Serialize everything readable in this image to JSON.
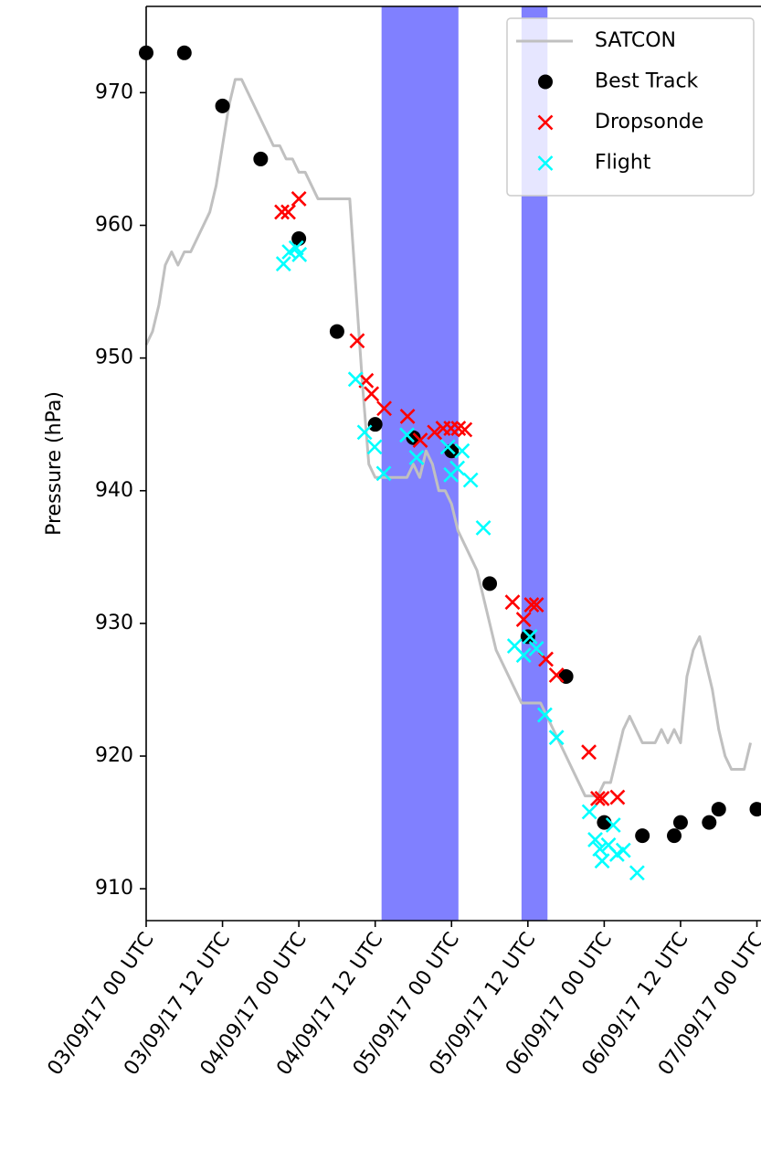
{
  "chart_data": {
    "type": "line",
    "y_label": "Pressure (hPa)",
    "xlim": [
      "2017-09-03T00:00Z",
      "2017-09-07T00:30Z"
    ],
    "ylim": [
      907.6,
      976.5
    ],
    "yticks": [
      910,
      920,
      930,
      940,
      950,
      960,
      970
    ],
    "xticks": [
      {
        "value": "2017-09-03T00:00Z",
        "label": "03/09/17 00 UTC"
      },
      {
        "value": "2017-09-03T12:00Z",
        "label": "03/09/17 12 UTC"
      },
      {
        "value": "2017-09-04T00:00Z",
        "label": "04/09/17 00 UTC"
      },
      {
        "value": "2017-09-04T12:00Z",
        "label": "04/09/17 12 UTC"
      },
      {
        "value": "2017-09-05T00:00Z",
        "label": "05/09/17 00 UTC"
      },
      {
        "value": "2017-09-05T12:00Z",
        "label": "05/09/17 12 UTC"
      },
      {
        "value": "2017-09-06T00:00Z",
        "label": "06/09/17 00 UTC"
      },
      {
        "value": "2017-09-06T12:00Z",
        "label": "06/09/17 12 UTC"
      },
      {
        "value": "2017-09-07T00:00Z",
        "label": "07/09/17 00 UTC"
      }
    ],
    "spans": [
      {
        "x": [
          "2017-09-04T13:00Z",
          "2017-09-05T01:05Z"
        ],
        "color": "#8080ff"
      },
      {
        "x": [
          "2017-09-05T11:00Z",
          "2017-09-05T15:05Z"
        ],
        "color": "#8080ff"
      }
    ],
    "legend": "upper right",
    "series": [
      {
        "name": "SATCON",
        "type": "line",
        "color": "#c0c0c0",
        "x": [
          "2017-09-03T00:00Z",
          "2017-09-03T01:00Z",
          "2017-09-03T02:00Z",
          "2017-09-03T03:00Z",
          "2017-09-03T04:00Z",
          "2017-09-03T05:00Z",
          "2017-09-03T06:00Z",
          "2017-09-03T07:00Z",
          "2017-09-03T08:00Z",
          "2017-09-03T09:00Z",
          "2017-09-03T10:00Z",
          "2017-09-03T11:00Z",
          "2017-09-03T12:00Z",
          "2017-09-03T13:00Z",
          "2017-09-03T14:00Z",
          "2017-09-03T15:00Z",
          "2017-09-03T16:00Z",
          "2017-09-03T17:00Z",
          "2017-09-03T18:00Z",
          "2017-09-03T19:00Z",
          "2017-09-03T20:00Z",
          "2017-09-03T21:00Z",
          "2017-09-03T22:00Z",
          "2017-09-03T23:00Z",
          "2017-09-04T00:00Z",
          "2017-09-04T01:00Z",
          "2017-09-04T02:00Z",
          "2017-09-04T03:00Z",
          "2017-09-04T04:00Z",
          "2017-09-04T05:00Z",
          "2017-09-04T06:00Z",
          "2017-09-04T07:00Z",
          "2017-09-04T08:00Z",
          "2017-09-04T09:00Z",
          "2017-09-04T10:00Z",
          "2017-09-04T11:00Z",
          "2017-09-04T12:00Z",
          "2017-09-04T13:00Z",
          "2017-09-04T14:00Z",
          "2017-09-04T15:00Z",
          "2017-09-04T16:00Z",
          "2017-09-04T17:00Z",
          "2017-09-04T18:00Z",
          "2017-09-04T19:00Z",
          "2017-09-04T20:00Z",
          "2017-09-04T21:00Z",
          "2017-09-04T22:00Z",
          "2017-09-04T23:00Z",
          "2017-09-05T00:00Z",
          "2017-09-05T01:00Z",
          "2017-09-05T02:00Z",
          "2017-09-05T03:00Z",
          "2017-09-05T04:00Z",
          "2017-09-05T05:00Z",
          "2017-09-05T06:00Z",
          "2017-09-05T07:00Z",
          "2017-09-05T08:00Z",
          "2017-09-05T09:00Z",
          "2017-09-05T10:00Z",
          "2017-09-05T11:00Z",
          "2017-09-05T12:00Z",
          "2017-09-05T13:00Z",
          "2017-09-05T14:00Z",
          "2017-09-05T15:00Z",
          "2017-09-05T16:00Z",
          "2017-09-05T17:00Z",
          "2017-09-05T18:00Z",
          "2017-09-05T19:00Z",
          "2017-09-05T20:00Z",
          "2017-09-05T21:00Z",
          "2017-09-05T22:00Z",
          "2017-09-05T23:00Z",
          "2017-09-06T00:00Z",
          "2017-09-06T01:00Z",
          "2017-09-06T02:00Z",
          "2017-09-06T03:00Z",
          "2017-09-06T04:00Z",
          "2017-09-06T05:00Z",
          "2017-09-06T06:00Z",
          "2017-09-06T07:00Z",
          "2017-09-06T08:00Z",
          "2017-09-06T09:00Z",
          "2017-09-06T10:00Z",
          "2017-09-06T11:00Z",
          "2017-09-06T12:00Z",
          "2017-09-06T13:00Z",
          "2017-09-06T14:00Z",
          "2017-09-06T15:00Z",
          "2017-09-06T16:00Z",
          "2017-09-06T17:00Z",
          "2017-09-06T18:00Z",
          "2017-09-06T19:00Z",
          "2017-09-06T20:00Z",
          "2017-09-06T21:00Z",
          "2017-09-06T22:00Z",
          "2017-09-06T23:00Z"
        ],
        "values": [
          951,
          952,
          954,
          957,
          958,
          957,
          958,
          958,
          959,
          960,
          961,
          963,
          966,
          969,
          971,
          971,
          970,
          969,
          968,
          967,
          966,
          966,
          965,
          965,
          964,
          964,
          963,
          962,
          962,
          962,
          962,
          962,
          962,
          955,
          948,
          942,
          941,
          941,
          941,
          941,
          941,
          941,
          942,
          941,
          943,
          942,
          940,
          940,
          939,
          937,
          936,
          935,
          934,
          932,
          930,
          928,
          927,
          926,
          925,
          924,
          924,
          924,
          924,
          923,
          922,
          921,
          920,
          919,
          918,
          917,
          917,
          917,
          918,
          918,
          920,
          922,
          923,
          922,
          921,
          921,
          921,
          922,
          921,
          922,
          921,
          926,
          928,
          929,
          927,
          925,
          922,
          920,
          919,
          919,
          919,
          921
        ]
      },
      {
        "name": "Best Track",
        "type": "scatter",
        "marker": "o",
        "color": "#000000",
        "x": [
          "2017-09-03T00:00Z",
          "2017-09-03T06:00Z",
          "2017-09-03T12:00Z",
          "2017-09-03T18:00Z",
          "2017-09-04T00:00Z",
          "2017-09-04T06:00Z",
          "2017-09-04T12:00Z",
          "2017-09-04T18:00Z",
          "2017-09-05T00:00Z",
          "2017-09-05T06:00Z",
          "2017-09-05T12:00Z",
          "2017-09-05T18:00Z",
          "2017-09-06T00:00Z",
          "2017-09-06T06:00Z",
          "2017-09-06T11:00Z",
          "2017-09-06T12:00Z",
          "2017-09-06T16:30Z",
          "2017-09-06T18:00Z",
          "2017-09-07T00:00Z"
        ],
        "values": [
          973,
          973,
          969,
          965,
          959,
          952,
          945,
          944,
          943,
          933,
          929,
          926,
          915,
          914,
          914,
          915,
          915,
          916,
          916
        ]
      },
      {
        "name": "Dropsonde",
        "type": "scatter",
        "marker": "x",
        "color": "#ff0000",
        "x": [
          "2017-09-03T21:20Z",
          "2017-09-03T22:20Z",
          "2017-09-04T00:00Z",
          "2017-09-04T09:10Z",
          "2017-09-04T10:35Z",
          "2017-09-04T11:25Z",
          "2017-09-04T13:25Z",
          "2017-09-04T17:05Z",
          "2017-09-04T19:05Z",
          "2017-09-04T21:20Z",
          "2017-09-04T22:40Z",
          "2017-09-04T23:55Z",
          "2017-09-05T01:05Z",
          "2017-09-05T02:05Z",
          "2017-09-05T09:35Z",
          "2017-09-05T11:20Z",
          "2017-09-05T12:35Z",
          "2017-09-05T13:20Z",
          "2017-09-05T14:50Z",
          "2017-09-05T16:30Z",
          "2017-09-05T21:35Z",
          "2017-09-05T23:00Z",
          "2017-09-05T23:40Z",
          "2017-09-06T02:05Z"
        ],
        "values": [
          961,
          961,
          962,
          951.3,
          948.3,
          947.3,
          946.2,
          945.6,
          943.8,
          944.4,
          944.7,
          944.7,
          944.7,
          944.6,
          931.6,
          930.3,
          931.4,
          931.4,
          927.3,
          926.1,
          920.3,
          916.8,
          916.8,
          916.9
        ]
      },
      {
        "name": "Flight",
        "type": "scatter",
        "marker": "x",
        "color": "#00ffff",
        "x": [
          "2017-09-03T21:35Z",
          "2017-09-03T22:30Z",
          "2017-09-03T23:35Z",
          "2017-09-04T00:05Z",
          "2017-09-04T08:55Z",
          "2017-09-04T10:20Z",
          "2017-09-04T11:55Z",
          "2017-09-04T13:20Z",
          "2017-09-04T17:00Z",
          "2017-09-04T18:30Z",
          "2017-09-04T23:25Z",
          "2017-09-04T23:55Z",
          "2017-09-05T00:55Z",
          "2017-09-05T01:40Z",
          "2017-09-05T03:00Z",
          "2017-09-05T05:00Z",
          "2017-09-05T09:55Z",
          "2017-09-05T11:20Z",
          "2017-09-05T12:20Z",
          "2017-09-05T13:20Z",
          "2017-09-05T14:40Z",
          "2017-09-05T16:30Z",
          "2017-09-05T21:40Z",
          "2017-09-05T22:35Z",
          "2017-09-05T23:20Z",
          "2017-09-05T23:40Z",
          "2017-09-06T00:40Z",
          "2017-09-06T01:25Z",
          "2017-09-06T02:00Z",
          "2017-09-06T03:00Z",
          "2017-09-06T05:10Z"
        ],
        "values": [
          957.1,
          958,
          958.3,
          957.8,
          948.4,
          944.4,
          943.3,
          941.3,
          944.2,
          942.5,
          943.3,
          941.2,
          941.7,
          943,
          940.8,
          937.2,
          928.3,
          927.6,
          929,
          928.1,
          923.1,
          921.4,
          915.8,
          913.7,
          913,
          912.1,
          913.3,
          914.8,
          912.6,
          912.9,
          911.2
        ]
      }
    ]
  }
}
